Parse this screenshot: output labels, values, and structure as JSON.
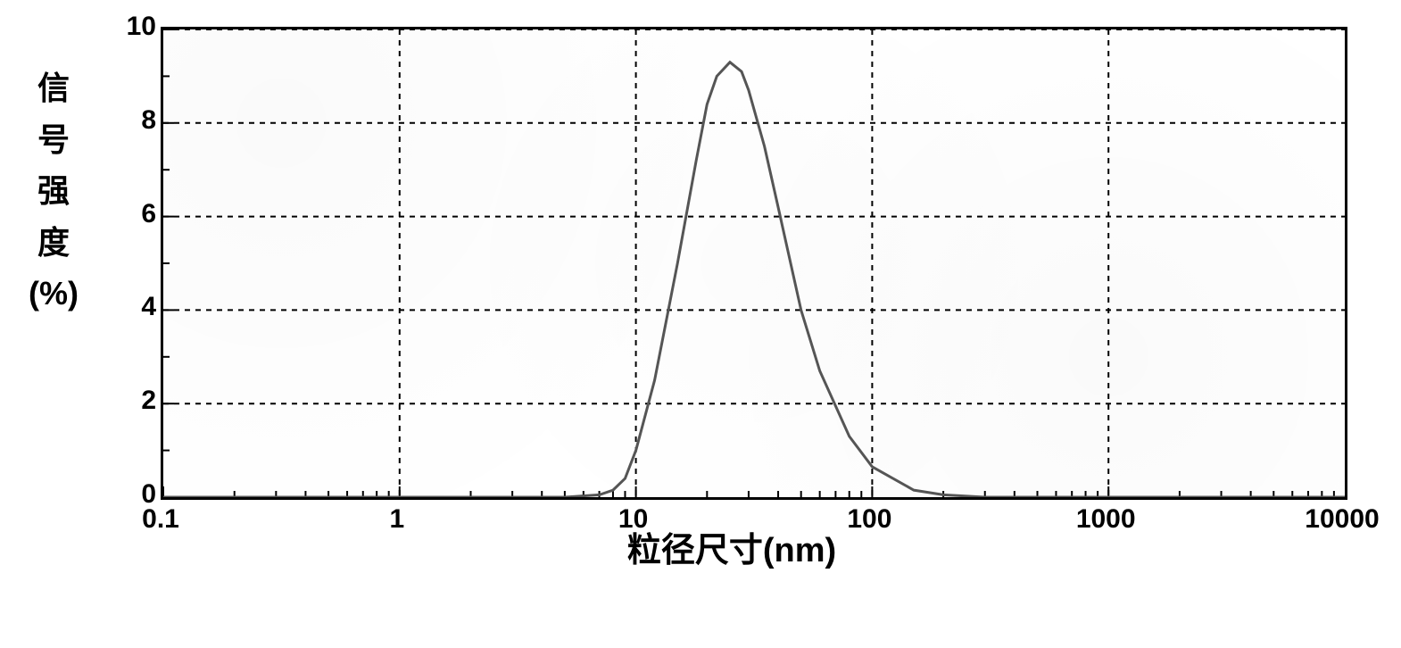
{
  "chart": {
    "type": "line",
    "x_scale": "log",
    "y_scale": "linear",
    "xlim": [
      0.1,
      10000
    ],
    "ylim": [
      0,
      10
    ],
    "x_ticks": [
      0.1,
      1,
      10,
      100,
      1000,
      10000
    ],
    "x_tick_labels": [
      "0.1",
      "1",
      "10",
      "100",
      "1000",
      "10000"
    ],
    "y_ticks": [
      0,
      2,
      4,
      6,
      8,
      10
    ],
    "y_tick_labels": [
      "0",
      "2",
      "4",
      "6",
      "8",
      "10"
    ],
    "x_label": "粒径尺寸(nm)",
    "y_label_chars": [
      "信",
      "号",
      "强",
      "度",
      "(%)"
    ],
    "x_label_fontsize": 38,
    "y_label_fontsize": 36,
    "tick_label_fontsize": 30,
    "series": {
      "x": [
        0.1,
        5,
        7,
        8,
        9,
        10,
        12,
        15,
        18,
        20,
        22,
        25,
        28,
        30,
        35,
        40,
        50,
        60,
        80,
        100,
        150,
        200,
        300,
        10000
      ],
      "y": [
        0,
        0,
        0.05,
        0.15,
        0.4,
        1.0,
        2.5,
        5.0,
        7.2,
        8.4,
        9.0,
        9.3,
        9.1,
        8.7,
        7.5,
        6.2,
        4.0,
        2.7,
        1.3,
        0.65,
        0.15,
        0.05,
        0,
        0
      ],
      "color": "#555555",
      "line_width": 3
    },
    "grid": {
      "major_color": "#000000",
      "dash": "6,6",
      "width": 2
    },
    "axis_color": "#000000",
    "axis_width": 3,
    "tick_length_major": 12,
    "tick_length_minor": 7,
    "background_color": "#ffffff"
  }
}
